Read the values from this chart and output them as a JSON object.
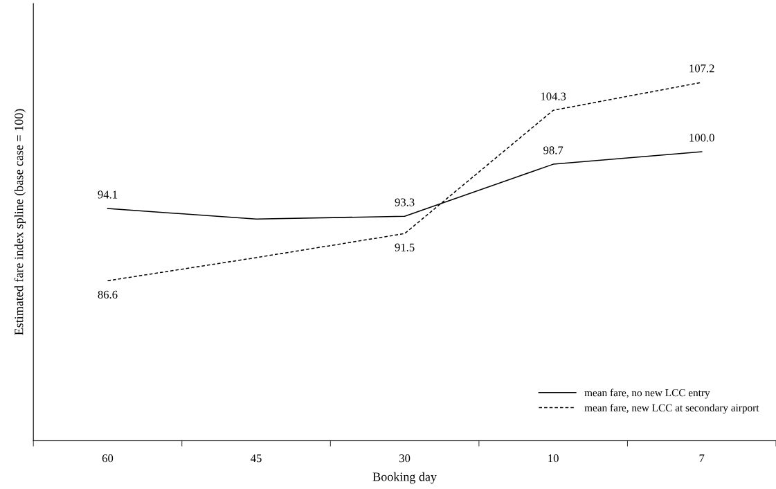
{
  "chart_data": {
    "type": "line",
    "xlabel": "Booking day",
    "ylabel": "Estimated fare index spline (base case = 100)",
    "categories": [
      "60",
      "45",
      "30",
      "10",
      "7"
    ],
    "series": [
      {
        "name": "mean fare, no new LCC entry",
        "color": "#000000",
        "line_style": "solid",
        "values": [
          94.1,
          93.0,
          93.3,
          98.7,
          100.0
        ],
        "value_labels": [
          "94.1",
          null,
          "93.3",
          "98.7",
          "100.0"
        ]
      },
      {
        "name": "mean fare, new LCC at secondary airport",
        "color": "#000000",
        "line_style": "dashed",
        "values": [
          86.6,
          89.0,
          91.5,
          104.3,
          107.2
        ],
        "value_labels": [
          "86.6",
          null,
          "91.5",
          "104.3",
          "107.2"
        ]
      }
    ],
    "ylim": [
      70,
      115.4
    ],
    "tick_labels": "x",
    "grid": false,
    "legend": "bottom right",
    "marker": "none"
  }
}
